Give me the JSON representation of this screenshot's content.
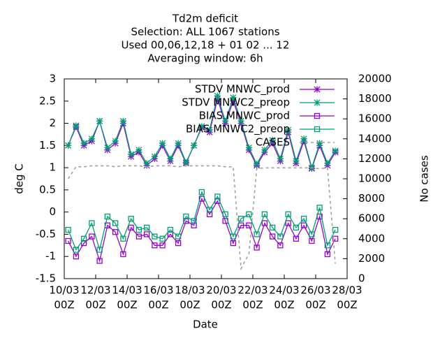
{
  "chart_data": {
    "type": "line",
    "title": [
      "Td2m deficit",
      "Selection: ALL    1067 stations",
      "Used  00,06,12,18 + 01 02 ... 12",
      "Averaging window:  6h"
    ],
    "xlabel": "Date",
    "ylabel": "deg C",
    "y2label": "No cases",
    "xlim": [
      10,
      28
    ],
    "xticks": [
      {
        "value": 10,
        "label": [
          "10/03",
          "00Z"
        ]
      },
      {
        "value": 12,
        "label": [
          "12/03",
          "00Z"
        ]
      },
      {
        "value": 14,
        "label": [
          "14/03",
          "00Z"
        ]
      },
      {
        "value": 16,
        "label": [
          "16/03",
          "00Z"
        ]
      },
      {
        "value": 18,
        "label": [
          "18/03",
          "00Z"
        ]
      },
      {
        "value": 20,
        "label": [
          "20/03",
          "00Z"
        ]
      },
      {
        "value": 22,
        "label": [
          "22/03",
          "00Z"
        ]
      },
      {
        "value": 24,
        "label": [
          "24/03",
          "00Z"
        ]
      },
      {
        "value": 26,
        "label": [
          "26/03",
          "00Z"
        ]
      },
      {
        "value": 28,
        "label": [
          "28/03",
          "00Z"
        ]
      }
    ],
    "ylim": [
      -1.5,
      3
    ],
    "yticks": [
      -1.5,
      -1,
      -0.5,
      0,
      0.5,
      1,
      1.5,
      2,
      2.5,
      3
    ],
    "y2lim": [
      0,
      20000
    ],
    "y2ticks": [
      0,
      2000,
      4000,
      6000,
      8000,
      10000,
      12000,
      14000,
      16000,
      18000,
      20000
    ],
    "legend": "top-right",
    "x": [
      10.25,
      10.75,
      11.25,
      11.75,
      12.25,
      12.75,
      13.25,
      13.75,
      14.25,
      14.75,
      15.25,
      15.75,
      16.25,
      16.75,
      17.25,
      17.75,
      18.25,
      18.75,
      19.25,
      19.75,
      20.25,
      20.75,
      21.25,
      21.75,
      22.25,
      22.75,
      23.25,
      23.75,
      24.25,
      24.75,
      25.25,
      25.75,
      26.25,
      26.75,
      27.25
    ],
    "series": [
      {
        "name": "STDV MNWC_prod",
        "color": "#9400d3",
        "marker": "star",
        "axis": "y",
        "values": [
          1.5,
          1.92,
          1.5,
          1.6,
          2.05,
          1.4,
          1.55,
          2.0,
          1.25,
          1.35,
          1.05,
          1.2,
          1.5,
          1.15,
          1.5,
          1.1,
          1.5,
          1.9,
          1.8,
          2.55,
          2.0,
          2.5,
          2.0,
          1.4,
          1.05,
          1.35,
          1.55,
          1.15,
          1.8,
          1.1,
          1.6,
          0.98,
          1.5,
          1.05,
          1.35
        ]
      },
      {
        "name": "STDV MNWC2_preop",
        "color": "#009e73",
        "marker": "star",
        "axis": "y",
        "values": [
          1.5,
          1.95,
          1.55,
          1.65,
          2.05,
          1.45,
          1.6,
          2.05,
          1.3,
          1.4,
          1.1,
          1.25,
          1.55,
          1.2,
          1.55,
          1.12,
          1.5,
          1.93,
          1.85,
          2.62,
          2.05,
          2.58,
          2.05,
          1.45,
          1.08,
          1.4,
          1.62,
          1.2,
          1.85,
          1.15,
          1.65,
          1.0,
          1.55,
          1.1,
          1.38
        ]
      },
      {
        "name": "BIAS MNWC_prod",
        "color": "#9400d3",
        "marker": "box",
        "axis": "y",
        "values": [
          -0.65,
          -1.0,
          -0.7,
          -0.55,
          -1.1,
          -0.3,
          -0.45,
          -0.95,
          -0.35,
          -0.55,
          -0.5,
          -0.75,
          -0.75,
          -0.5,
          -0.7,
          -0.2,
          -0.3,
          0.3,
          -0.05,
          0.25,
          -0.2,
          -0.7,
          -0.3,
          -0.3,
          -0.8,
          -0.25,
          -0.55,
          -0.75,
          -0.25,
          -0.6,
          -0.3,
          -0.65,
          -0.1,
          -0.95,
          -0.6
        ]
      },
      {
        "name": "BIAS MNWC2_preop",
        "color": "#009e73",
        "marker": "box",
        "axis": "y",
        "values": [
          -0.4,
          -0.85,
          -0.6,
          -0.25,
          -0.85,
          -0.1,
          -0.25,
          -0.6,
          -0.15,
          -0.4,
          -0.35,
          -0.55,
          -0.6,
          -0.4,
          -0.55,
          -0.1,
          -0.2,
          0.45,
          0.05,
          0.35,
          -0.05,
          -0.55,
          -0.15,
          -0.05,
          -0.5,
          -0.05,
          -0.35,
          -0.55,
          -0.05,
          -0.35,
          -0.15,
          -0.5,
          0.1,
          -0.75,
          -0.4
        ]
      },
      {
        "name": "CASES",
        "color": "#a0a0a0",
        "marker": "none",
        "dash": true,
        "axis": "y2",
        "values": [
          10000,
          11200,
          11200,
          11300,
          11300,
          11300,
          11200,
          11300,
          11300,
          11300,
          11200,
          11300,
          11300,
          11300,
          11200,
          11300,
          11300,
          11300,
          11300,
          11300,
          11200,
          11200,
          1000,
          2500,
          11000,
          11100,
          11100,
          11100,
          11100,
          11100,
          11100,
          11100,
          11000,
          11100,
          1500
        ]
      }
    ]
  }
}
